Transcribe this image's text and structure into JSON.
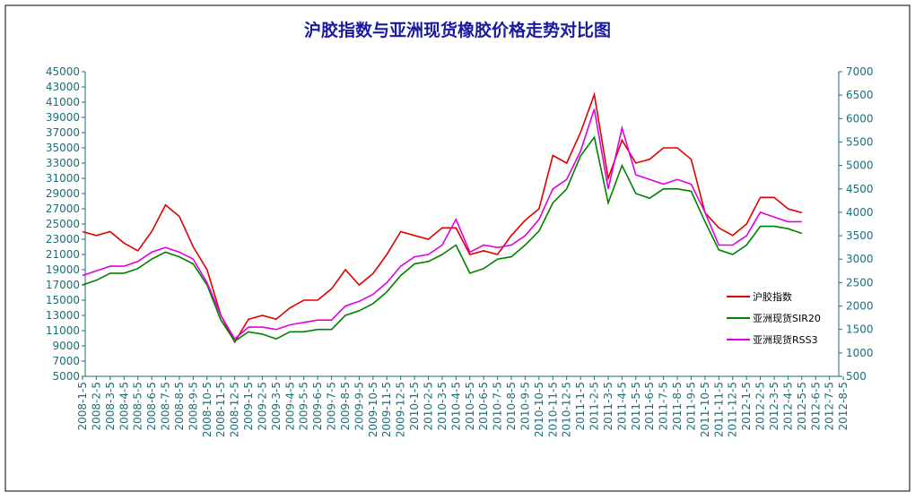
{
  "chart_data": {
    "type": "line",
    "title": "沪胶指数与亚洲现货橡胶价格走势对比图",
    "categories": [
      "2008-1-5",
      "2008-2-5",
      "2008-3-5",
      "2008-4-5",
      "2008-5-5",
      "2008-6-5",
      "2008-7-5",
      "2008-8-5",
      "2008-9-5",
      "2008-10-5",
      "2008-11-5",
      "2008-12-5",
      "2009-1-5",
      "2009-2-5",
      "2009-3-5",
      "2009-4-5",
      "2009-5-5",
      "2009-6-5",
      "2009-7-5",
      "2009-8-5",
      "2009-9-5",
      "2009-10-5",
      "2009-11-5",
      "2009-12-5",
      "2010-1-5",
      "2010-2-5",
      "2010-3-5",
      "2010-4-5",
      "2010-5-5",
      "2010-6-5",
      "2010-7-5",
      "2010-8-5",
      "2010-9-5",
      "2010-10-5",
      "2010-11-5",
      "2010-12-5",
      "2011-1-5",
      "2011-2-5",
      "2011-3-5",
      "2011-4-5",
      "2011-5-5",
      "2011-6-5",
      "2011-7-5",
      "2011-8-5",
      "2011-9-5",
      "2011-10-5",
      "2011-11-5",
      "2011-12-5",
      "2012-1-5",
      "2012-2-5",
      "2012-3-5",
      "2012-4-5",
      "2012-5-5",
      "2012-6-5",
      "2012-7-5",
      "2012-8-5"
    ],
    "series": [
      {
        "name": "沪胶指数",
        "color": "#e00000",
        "values": [
          24000,
          23500,
          24000,
          22500,
          21500,
          24000,
          27500,
          26000,
          22000,
          19000,
          13000,
          9500,
          12500,
          13000,
          12500,
          14000,
          15000,
          15000,
          16500,
          19000,
          17000,
          18500,
          21000,
          24000,
          23500,
          23000,
          24500,
          24500,
          21000,
          21500,
          21000,
          23500,
          25500,
          27000,
          34000,
          33000,
          37000,
          42000,
          31000,
          36000,
          33000,
          33500,
          35000,
          35000,
          33500,
          26500,
          24500,
          23500,
          25000,
          28500,
          28500,
          27000,
          26500,
          null,
          null,
          null
        ]
      },
      {
        "name": "亚洲现货SIR20",
        "color": "#008000",
        "axis": "y2",
        "values": [
          2450,
          2550,
          2700,
          2700,
          2800,
          3000,
          3150,
          3050,
          2900,
          2450,
          1700,
          1250,
          1450,
          1400,
          1300,
          1450,
          1450,
          1500,
          1500,
          1800,
          1900,
          2050,
          2300,
          2650,
          2900,
          2950,
          3100,
          3300,
          2700,
          2800,
          3000,
          3050,
          3300,
          3600,
          4200,
          4500,
          5200,
          5600,
          4200,
          5000,
          4400,
          4300,
          4500,
          4500,
          4450,
          3800,
          3200,
          3100,
          3300,
          3700,
          3700,
          3650,
          3550,
          null,
          null,
          null
        ]
      },
      {
        "name": "亚洲现货RSS3",
        "color": "#e000e0",
        "axis": "y2",
        "values": [
          2650,
          2750,
          2850,
          2850,
          2950,
          3150,
          3250,
          3150,
          3000,
          2500,
          1800,
          1300,
          1550,
          1550,
          1500,
          1600,
          1650,
          1700,
          1700,
          2000,
          2100,
          2250,
          2500,
          2850,
          3050,
          3100,
          3300,
          3850,
          3150,
          3300,
          3250,
          3300,
          3500,
          3850,
          4500,
          4700,
          5300,
          6200,
          4500,
          5800,
          4800,
          4700,
          4600,
          4700,
          4600,
          4000,
          3300,
          3300,
          3500,
          4000,
          3900,
          3800,
          3800,
          null,
          null,
          null
        ]
      }
    ],
    "ylim": [
      5000,
      45000
    ],
    "yticks": [
      5000,
      7000,
      9000,
      11000,
      13000,
      15000,
      17000,
      19000,
      21000,
      23000,
      25000,
      27000,
      29000,
      31000,
      33000,
      35000,
      37000,
      39000,
      41000,
      43000,
      45000
    ],
    "y2lim": [
      500,
      7000
    ],
    "y2ticks": [
      500,
      1000,
      1500,
      2000,
      2500,
      3000,
      3500,
      4000,
      4500,
      5000,
      5500,
      6000,
      6500,
      7000
    ]
  }
}
